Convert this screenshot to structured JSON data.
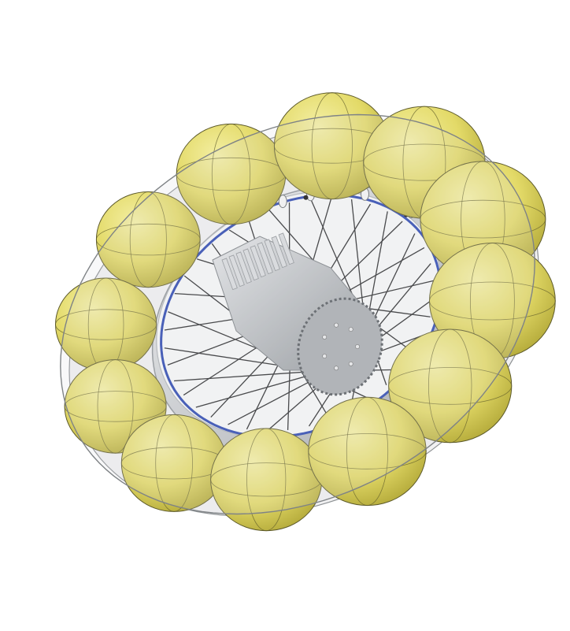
{
  "scene": {
    "subject": "",
    "colors": {
      "background": "#ffffff",
      "bladder_fill": "#e2da6a",
      "bladder_shade": "#b7ae3c",
      "bladder_light": "#f3ee9c",
      "bladder_seam": "#5d5a2a",
      "shell": "#b9bdbf",
      "rim": "#dcdfe1",
      "rim_shadow": "#8f9498",
      "blue_band": "#2a46b0",
      "spokes": "#2a2b2d",
      "hub": "#c7cacc",
      "hub_plate": "#a9adb0",
      "inner_yellow": "#f0e000"
    },
    "bladder_count": 12,
    "spoke_count": 40,
    "bolt_count": 7
  }
}
